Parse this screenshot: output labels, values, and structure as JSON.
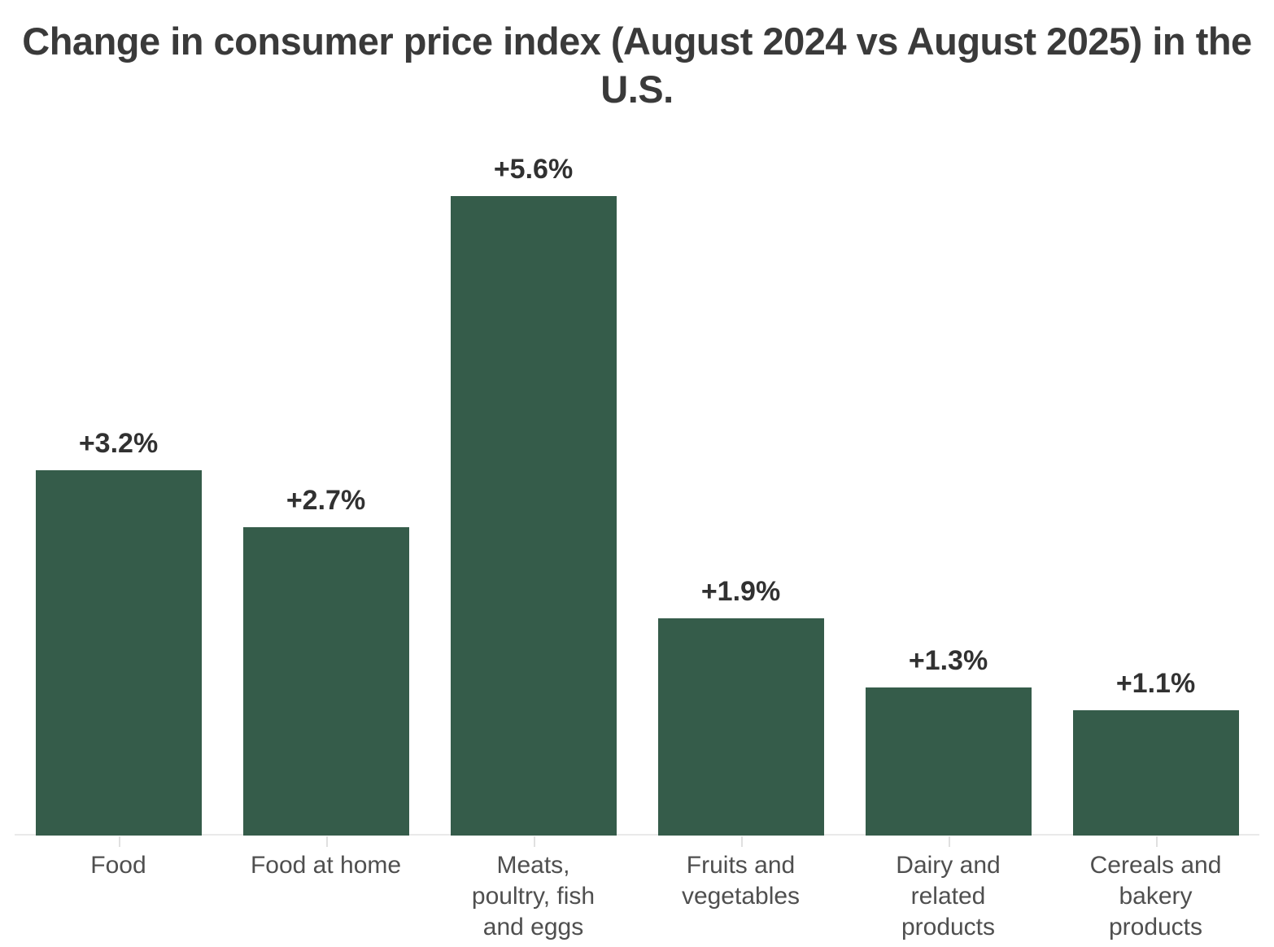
{
  "header": {
    "title": "Change in consumer price index (August 2024 vs August 2025) in the U.S."
  },
  "chart_data": {
    "type": "bar",
    "title": "Change in consumer price index (August 2024 vs August 2025) in the U.S.",
    "categories": [
      "Food",
      "Food at home",
      "Meats, poultry, fish and eggs",
      "Fruits and vegetables",
      "Dairy and related products",
      "Cereals and bakery products"
    ],
    "values": [
      3.2,
      2.7,
      5.6,
      1.9,
      1.3,
      1.1
    ],
    "data_labels": [
      "+3.2%",
      "+2.7%",
      "+5.6%",
      "+1.9%",
      "+1.3%",
      "+1.1%"
    ],
    "tick_label_lines": [
      [
        "Food"
      ],
      [
        "Food at home"
      ],
      [
        "Meats,",
        "poultry, fish",
        "and eggs"
      ],
      [
        "Fruits and",
        "vegetables"
      ],
      [
        "Dairy and",
        "related",
        "products"
      ],
      [
        "Cereals and",
        "bakery",
        "products"
      ]
    ],
    "xlabel": "",
    "ylabel": "",
    "ylim": [
      0,
      5.6
    ],
    "grid": false,
    "legend": false,
    "orientation": "vertical",
    "unit": "percent",
    "bar_color": "#355C4A",
    "title_color": "#3A3A3A",
    "data_label_color": "#313131",
    "tick_label_color": "#4F4F4F",
    "axis_line_color": "#E9E9E9",
    "tick_mark_color": "#E0E0E0",
    "background_color": "#FFFFFF"
  }
}
